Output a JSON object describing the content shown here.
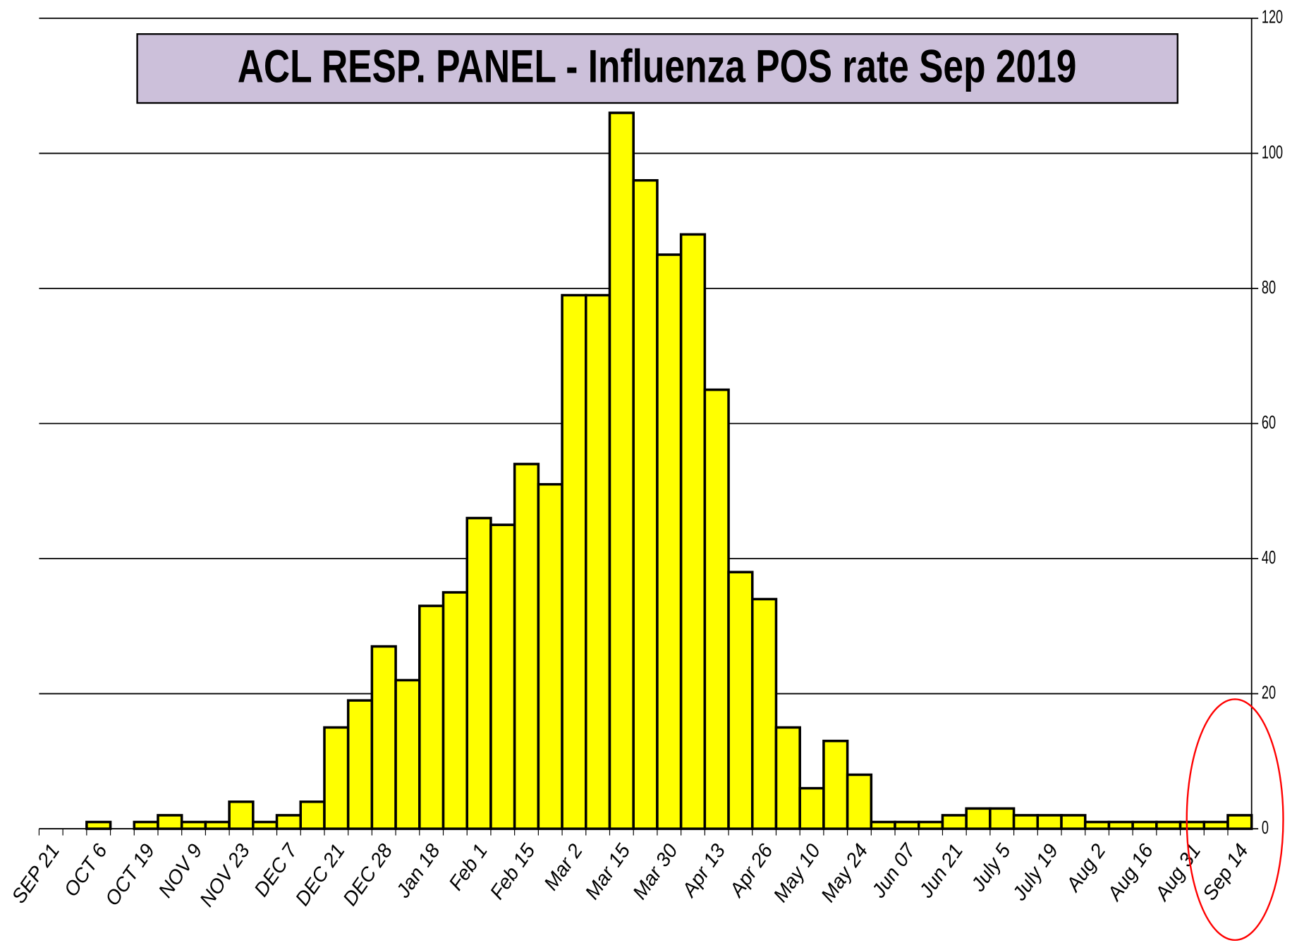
{
  "chart_data": {
    "type": "bar",
    "title": "ACL RESP. PANEL -  Influenza POS rate  Sep 2019",
    "categories": [
      "SEP 21",
      null,
      "OCT 6",
      null,
      "OCT 19",
      null,
      "NOV 9",
      null,
      "NOV 23",
      null,
      "DEC 7",
      null,
      "DEC 21",
      null,
      "DEC 28",
      null,
      "Jan 18",
      null,
      "Feb 1",
      null,
      "Feb 15",
      null,
      "Mar 2",
      null,
      "Mar 15",
      null,
      "Mar 30",
      null,
      "Apr 13",
      null,
      "Apr 26",
      null,
      "May 10",
      null,
      "May 24",
      null,
      "Jun 07",
      null,
      "Jun 21",
      null,
      "July 5",
      null,
      "July 19",
      null,
      "Aug 2",
      null,
      "Aug 16",
      null,
      "Aug 31",
      null,
      "Sep 14"
    ],
    "values": [
      0,
      0,
      1,
      0,
      1,
      2,
      1,
      1,
      4,
      1,
      2,
      4,
      15,
      19,
      27,
      22,
      33,
      35,
      46,
      45,
      54,
      51,
      79,
      79,
      106,
      96,
      85,
      88,
      65,
      38,
      34,
      15,
      6,
      13,
      8,
      1,
      1,
      1,
      2,
      3,
      3,
      2,
      2,
      2,
      1,
      1,
      1,
      1,
      1,
      1,
      2
    ],
    "color": "#ffff00",
    "ylim": [
      0,
      120
    ],
    "yticks": [
      0,
      20,
      40,
      60,
      80,
      100,
      120
    ],
    "grid": true
  }
}
